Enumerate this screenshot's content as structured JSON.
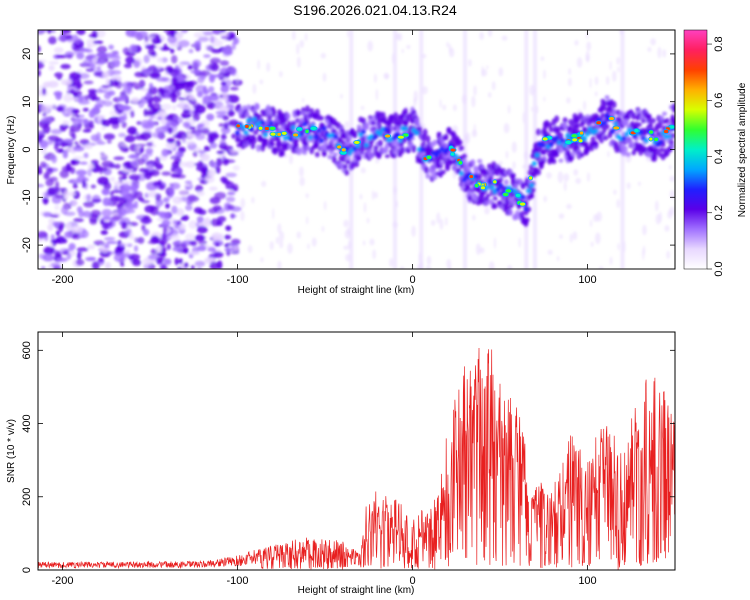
{
  "title": "S196.2026.021.04.13.R24",
  "colors": {
    "colormap": [
      "#ffffff",
      "#e8d8ff",
      "#a070ff",
      "#5a00e8",
      "#2020ff",
      "#00a8ff",
      "#00f0c8",
      "#30ff30",
      "#d8ff00",
      "#ffb000",
      "#ff4000",
      "#ff2060",
      "#ff40c0"
    ],
    "snr_line": "#e82020"
  },
  "chart_data": [
    {
      "type": "heatmap",
      "xlabel": "Height of straight line (km)",
      "ylabel": "Frequency (Hz)",
      "xlim": [
        -214,
        150
      ],
      "ylim": [
        -25,
        25
      ],
      "xticks": [
        -200,
        -100,
        0,
        100
      ],
      "yticks": [
        -20,
        -10,
        0,
        10,
        20
      ],
      "colorbar": {
        "label": "Normalized spectral amplitude",
        "range": [
          0,
          0.85
        ],
        "ticks": [
          "0.0",
          "0.2",
          "0.4",
          "0.6",
          "0.8"
        ]
      },
      "ridge": {
        "x": [
          -100,
          -90,
          -80,
          -70,
          -60,
          -50,
          -45,
          -40,
          -35,
          -30,
          -20,
          -10,
          0,
          5,
          10,
          20,
          25,
          30,
          40,
          50,
          60,
          65,
          70,
          75,
          85,
          100,
          110,
          120,
          130,
          140,
          150
        ],
        "freq": [
          5,
          5,
          4,
          3,
          4,
          3,
          2,
          0,
          -1,
          2,
          3,
          3,
          4,
          0,
          -2,
          0,
          0,
          -6,
          -7,
          -8,
          -10,
          -12,
          -2,
          2,
          2,
          3,
          7,
          3,
          4,
          2,
          5
        ]
      }
    },
    {
      "type": "line",
      "xlabel": "Height of straight line (km)",
      "ylabel": "SNR (10 * v/v)",
      "xlim": [
        -214,
        150
      ],
      "ylim": [
        0,
        650
      ],
      "xticks": [
        -200,
        -100,
        0,
        100
      ],
      "yticks": [
        0,
        200,
        400,
        600
      ],
      "envelope": {
        "x": [
          -214,
          -120,
          -100,
          -80,
          -60,
          -40,
          -30,
          -25,
          -20,
          -10,
          0,
          10,
          15,
          20,
          30,
          40,
          45,
          50,
          60,
          70,
          80,
          90,
          100,
          110,
          120,
          130,
          140,
          150
        ],
        "y": [
          22,
          24,
          40,
          70,
          90,
          80,
          45,
          250,
          210,
          200,
          160,
          170,
          250,
          400,
          560,
          620,
          640,
          520,
          450,
          250,
          220,
          380,
          300,
          440,
          320,
          510,
          540,
          420
        ]
      }
    }
  ]
}
